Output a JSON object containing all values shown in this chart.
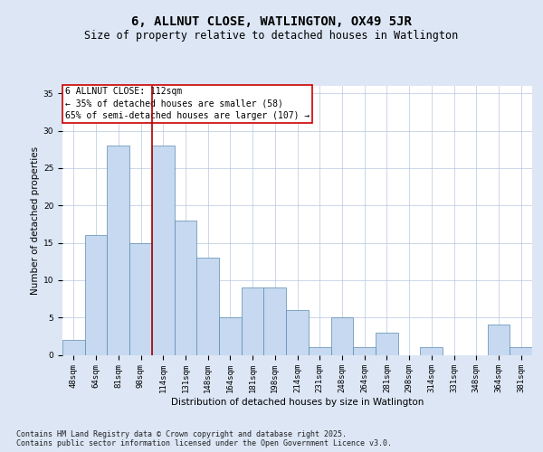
{
  "title": "6, ALLNUT CLOSE, WATLINGTON, OX49 5JR",
  "subtitle": "Size of property relative to detached houses in Watlington",
  "xlabel": "Distribution of detached houses by size in Watlington",
  "ylabel": "Number of detached properties",
  "categories": [
    "48sqm",
    "64sqm",
    "81sqm",
    "98sqm",
    "114sqm",
    "131sqm",
    "148sqm",
    "164sqm",
    "181sqm",
    "198sqm",
    "214sqm",
    "231sqm",
    "248sqm",
    "264sqm",
    "281sqm",
    "298sqm",
    "314sqm",
    "331sqm",
    "348sqm",
    "364sqm",
    "381sqm"
  ],
  "values": [
    2,
    16,
    28,
    15,
    28,
    18,
    13,
    5,
    9,
    9,
    6,
    1,
    5,
    1,
    3,
    0,
    1,
    0,
    0,
    4,
    1
  ],
  "bar_color": "#c6d9f0",
  "bar_edge_color": "#5a8ab0",
  "vline_color": "#aa0000",
  "vline_x_index": 3.5,
  "ylim": [
    0,
    36
  ],
  "yticks": [
    0,
    5,
    10,
    15,
    20,
    25,
    30,
    35
  ],
  "annotation_title": "6 ALLNUT CLOSE: 112sqm",
  "annotation_line2": "← 35% of detached houses are smaller (58)",
  "annotation_line3": "65% of semi-detached houses are larger (107) →",
  "annotation_box_color": "#cc0000",
  "background_color": "#dce6f5",
  "plot_background": "#ffffff",
  "grid_color": "#b8c8de",
  "footer": "Contains HM Land Registry data © Crown copyright and database right 2025.\nContains public sector information licensed under the Open Government Licence v3.0.",
  "title_fontsize": 10,
  "subtitle_fontsize": 8.5,
  "axis_label_fontsize": 7.5,
  "tick_fontsize": 6.5,
  "annotation_fontsize": 7,
  "footer_fontsize": 6
}
